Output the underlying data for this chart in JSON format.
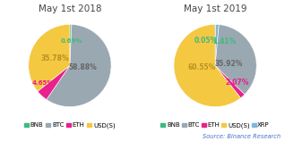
{
  "chart1": {
    "title": "May 1st 2018",
    "labels": [
      "BNB",
      "BTC",
      "ETH",
      "USD(S)"
    ],
    "values": [
      0.69,
      58.88,
      4.65,
      35.78
    ],
    "colors": [
      "#3dba7f",
      "#9aa8b2",
      "#e8218c",
      "#f5c842"
    ],
    "pct_labels": [
      "0.69%",
      "58.88%",
      "4.65%",
      "35.78%"
    ],
    "pct_colors": [
      "#3dba7f",
      "#666666",
      "#e8218c",
      "#b89020"
    ],
    "startangle": 90
  },
  "chart2": {
    "title": "May 1st 2019",
    "labels": [
      "BNB",
      "BTC",
      "ETH",
      "USD(S)",
      "XRP"
    ],
    "values": [
      0.05,
      35.92,
      2.07,
      60.55,
      1.41
    ],
    "colors": [
      "#3dba7f",
      "#9aa8b2",
      "#e8218c",
      "#f5c842",
      "#7ab8e0"
    ],
    "pct_labels": [
      "0.05%",
      "35.92%",
      "2.07%",
      "60.55%",
      "1.41%"
    ],
    "pct_colors": [
      "#3dba7f",
      "#666666",
      "#e8218c",
      "#b89020",
      "#5090c0"
    ],
    "startangle": 90
  },
  "legend1_labels": [
    "BNB",
    "BTC",
    "ETH",
    "USD(S)"
  ],
  "legend1_colors": [
    "#3dba7f",
    "#9aa8b2",
    "#e8218c",
    "#f5c842"
  ],
  "legend2_labels": [
    "BNB",
    "BTC",
    "ETH",
    "USD(S)",
    "XRP"
  ],
  "legend2_colors": [
    "#3dba7f",
    "#9aa8b2",
    "#e8218c",
    "#f5c842",
    "#7ab8e0"
  ],
  "source_text": "Source: Binance Research",
  "bg": "#ffffff",
  "title_fontsize": 7.5,
  "pct_fontsize": 5.5,
  "legend_fontsize": 5.0,
  "source_fontsize": 4.8
}
